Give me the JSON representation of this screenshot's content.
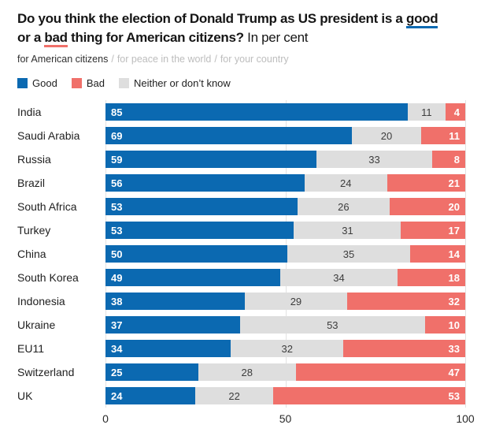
{
  "title": {
    "line1_pre": "Do you think the election of Donald Trump as US president is a ",
    "line1_good": "good",
    "line2_pre": "or a ",
    "line2_bad": "bad",
    "line2_post": " thing for American citizens?",
    "unit": "In per cent"
  },
  "subtitle": {
    "separator": "/",
    "tabs": [
      {
        "label": "for American citizens",
        "active": true
      },
      {
        "label": "for peace in the world",
        "active": false
      },
      {
        "label": "for your country",
        "active": false
      }
    ]
  },
  "legend": {
    "items": [
      {
        "label": "Good",
        "color": "#0b69b1"
      },
      {
        "label": "Bad",
        "color": "#f0706a"
      },
      {
        "label": "Neither or don’t know",
        "color": "#dedede"
      }
    ]
  },
  "chart_data": {
    "type": "bar",
    "orientation": "horizontal",
    "stacked": true,
    "title": "Do you think the election of Donald Trump as US president is a good or a bad thing for American citizens?",
    "unit": "per cent",
    "categories": [
      "India",
      "Saudi Arabia",
      "Russia",
      "Brazil",
      "South Africa",
      "Turkey",
      "China",
      "South Korea",
      "Indonesia",
      "Ukraine",
      "EU11",
      "Switzerland",
      "UK"
    ],
    "series": [
      {
        "key": "good",
        "name": "Good",
        "color": "#0b69b1",
        "label_color": "#ffffff",
        "values": [
          85,
          69,
          59,
          56,
          53,
          53,
          50,
          49,
          38,
          37,
          34,
          25,
          24
        ]
      },
      {
        "key": "neither",
        "name": "Neither or don’t know",
        "color": "#dedede",
        "label_color": "#3d3d3d",
        "values": [
          11,
          20,
          33,
          24,
          26,
          31,
          35,
          34,
          29,
          53,
          32,
          28,
          22
        ]
      },
      {
        "key": "bad",
        "name": "Bad",
        "color": "#f0706a",
        "label_color": "#ffffff",
        "values": [
          4,
          11,
          8,
          21,
          20,
          17,
          14,
          18,
          32,
          10,
          33,
          47,
          53
        ]
      }
    ],
    "xlim": [
      0,
      100
    ],
    "xticks": [
      0,
      50,
      100
    ],
    "legend_order": [
      "Good",
      "Bad",
      "Neither or don't know"
    ],
    "gridlines": true,
    "legend_position": "top"
  }
}
